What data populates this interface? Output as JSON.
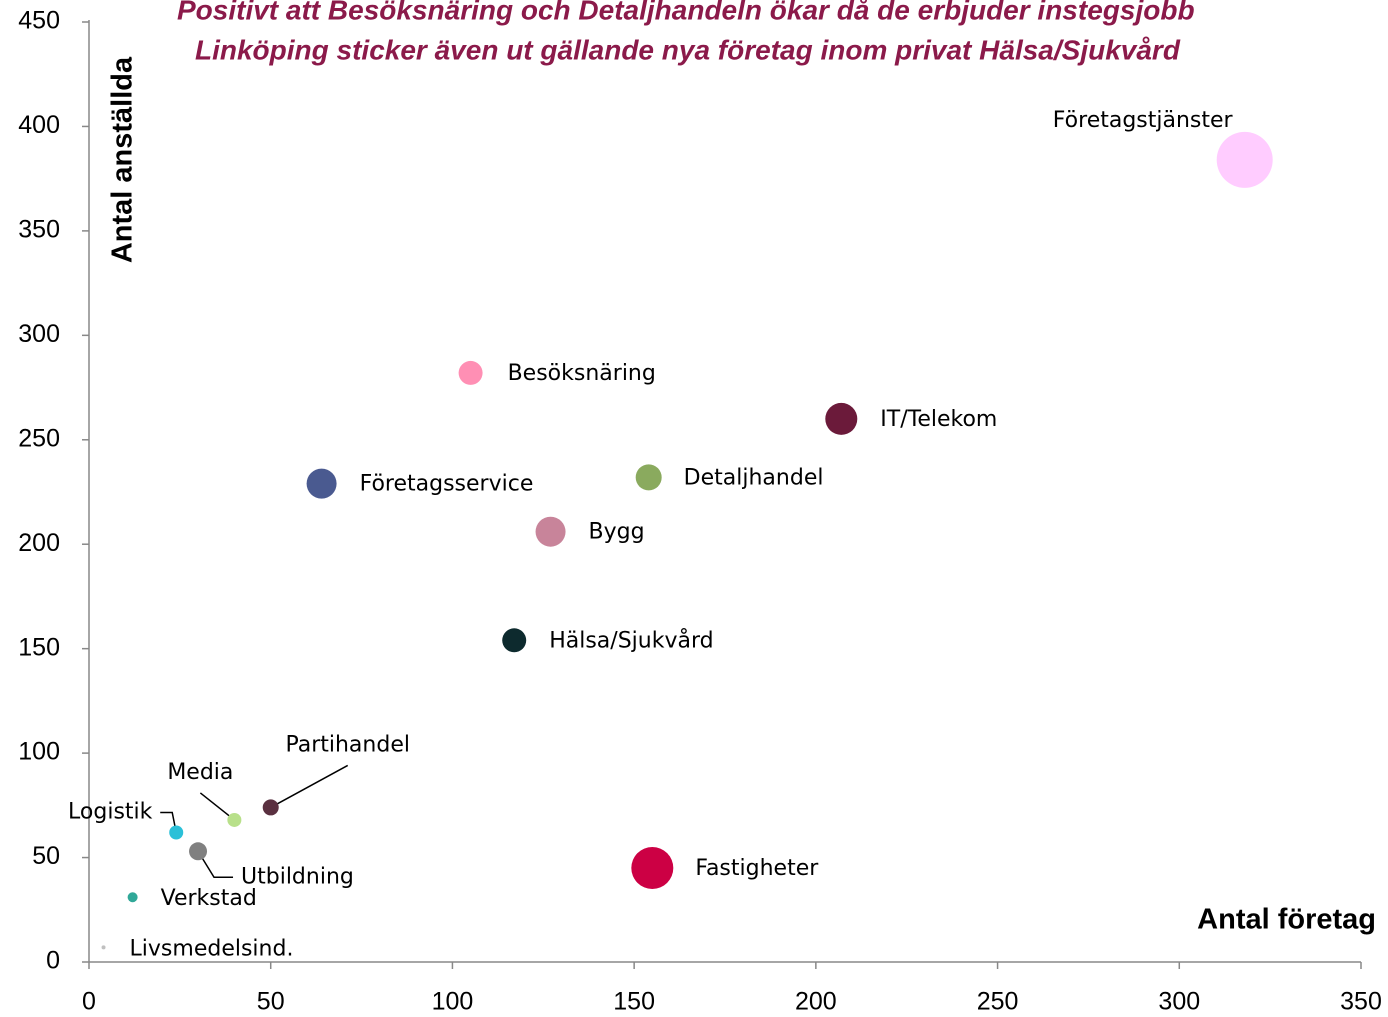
{
  "chart_data": {
    "type": "bubble",
    "title": [
      "Positivt att Besöksnäring och Detaljhandeln ökar då de erbjuder instegsjobb",
      "Linköping sticker även ut gällande nya företag inom privat Hälsa/Sjukvård"
    ],
    "x_label": "Antal företag",
    "y_label": "Antal anställda",
    "labels": [
      "Företagstjänster",
      "Besöksnäring",
      "IT/Telekom",
      "Företagsservice",
      "Detaljhandel",
      "Bygg",
      "Hälsa/Sjukvård",
      "Partihandel",
      "Media",
      "Logistik",
      "Utbildning",
      "Verkstad",
      "Fastigheter",
      "Livsmedelsind."
    ],
    "x": [
      318,
      105,
      207,
      64,
      154,
      127,
      117,
      50,
      40,
      24,
      30,
      12,
      155,
      4
    ],
    "values": [
      384,
      282,
      260,
      229,
      232,
      206,
      154,
      74,
      68,
      62,
      53,
      31,
      45,
      7
    ],
    "sizes": [
      784,
      144,
      256,
      225,
      169,
      225,
      144,
      64,
      49,
      49,
      81,
      25,
      441,
      4
    ],
    "colors": [
      "#ffccff",
      "#ff8fb4",
      "#6b1a3a",
      "#4a5a90",
      "#8aaa5e",
      "#c8849a",
      "#0d2a2e",
      "#5a3040",
      "#b8e08a",
      "#2ac0d8",
      "#808080",
      "#30a898",
      "#cc0044",
      "#c0c0c0"
    ],
    "xlim": [
      0,
      350
    ],
    "xticks": [
      0,
      50,
      100,
      150,
      200,
      250,
      300,
      350
    ],
    "ylim": [
      0,
      450
    ],
    "yticks": [
      0,
      50,
      100,
      150,
      200,
      250,
      300,
      350,
      400,
      450
    ],
    "grid": false
  }
}
